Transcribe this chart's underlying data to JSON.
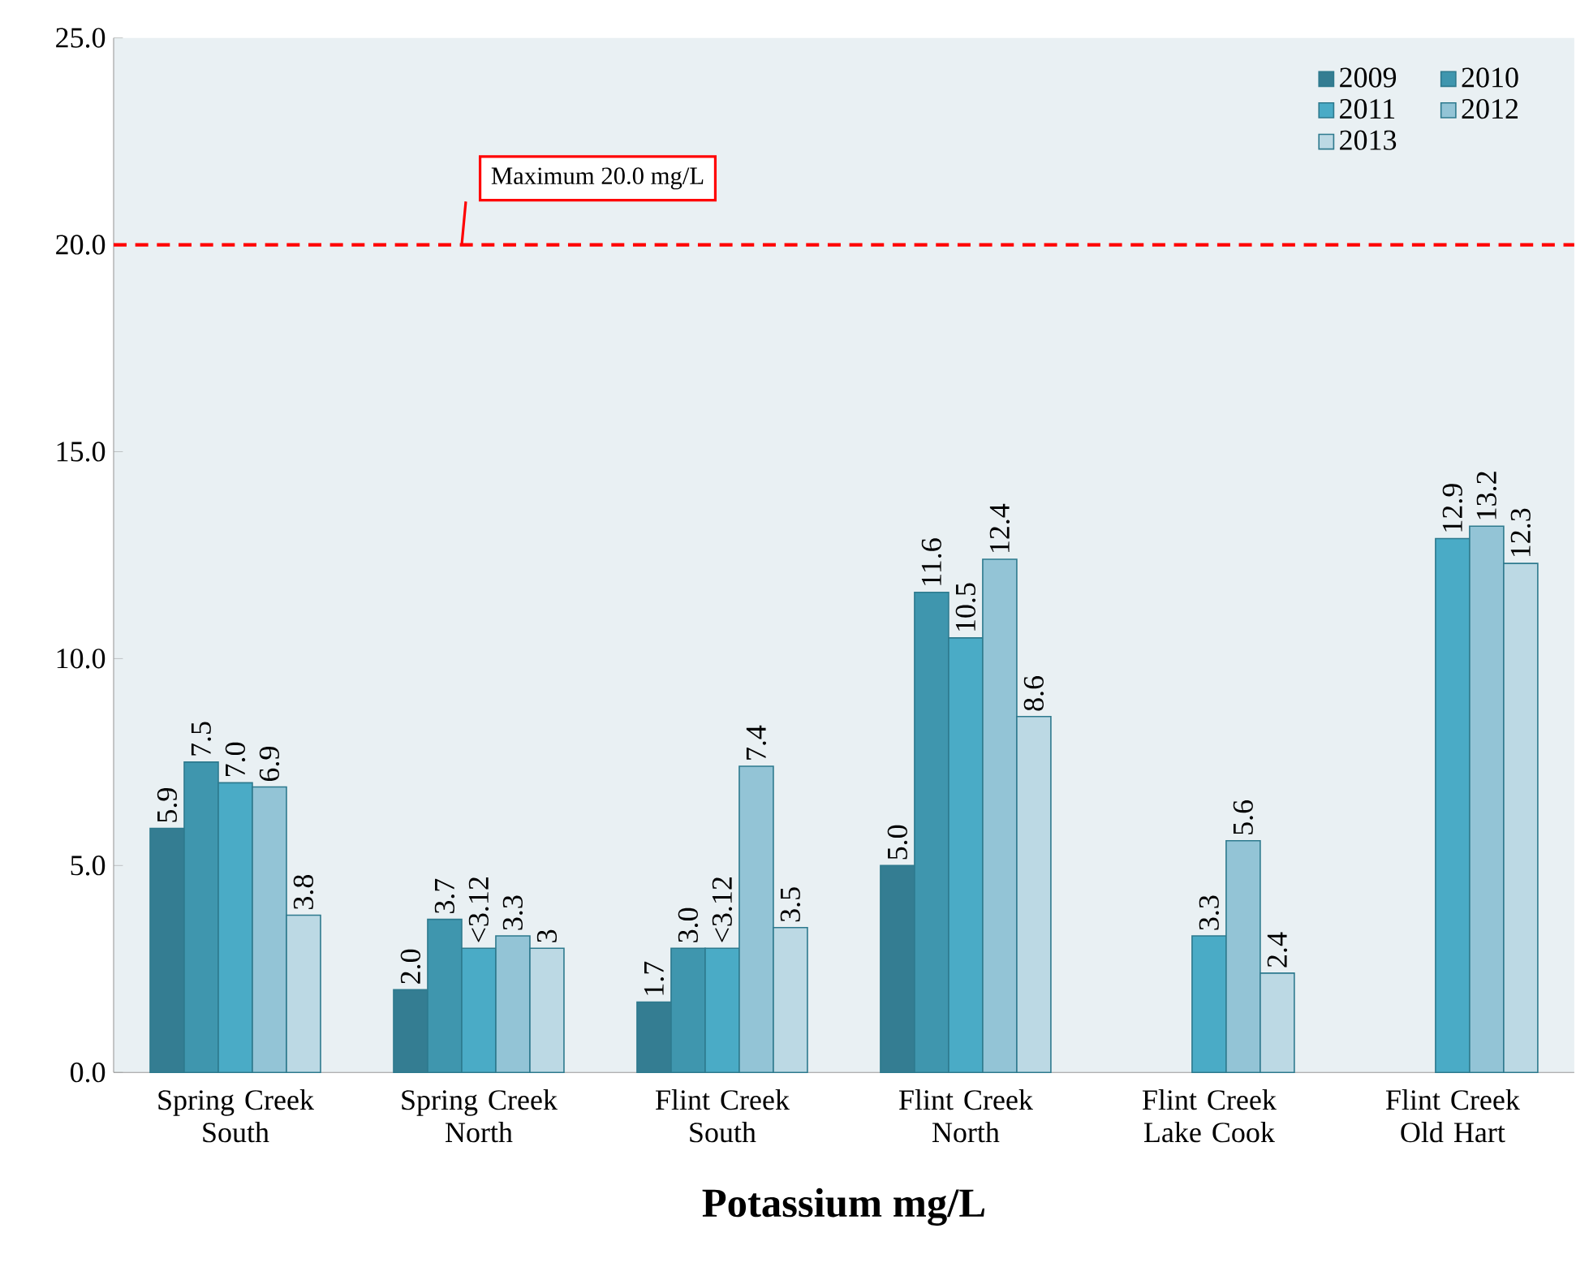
{
  "chart_data": {
    "type": "bar",
    "xlabel": "Potassium mg/L",
    "categories": [
      "Spring Creek South",
      "Spring Creek North",
      "Flint Creek South",
      "Flint Creek North",
      "Flint Creek Lake Cook",
      "Flint Creek Old Hart"
    ],
    "series": [
      {
        "name": "2009",
        "color": "#347d92",
        "values": [
          5.9,
          2.0,
          1.7,
          5.0,
          null,
          null
        ],
        "value_labels": [
          "5.9",
          "2.0",
          "1.7",
          "5.0",
          null,
          null
        ]
      },
      {
        "name": "2010",
        "color": "#3f96ae",
        "values": [
          7.5,
          3.7,
          3.0,
          11.6,
          null,
          null
        ],
        "value_labels": [
          "7.5",
          "3.7",
          "3.0",
          "11.6",
          null,
          null
        ]
      },
      {
        "name": "2011",
        "color": "#4aabc6",
        "values": [
          7.0,
          3.0,
          3.0,
          10.5,
          3.3,
          12.9
        ],
        "value_labels": [
          "7.0",
          "<3.12",
          "<3.12",
          "10.5",
          "3.3",
          "12.9"
        ]
      },
      {
        "name": "2012",
        "color": "#93c4d6",
        "values": [
          6.9,
          3.3,
          7.4,
          12.4,
          5.6,
          13.2
        ],
        "value_labels": [
          "6.9",
          "3.3",
          "7.4",
          "12.4",
          "5.6",
          "13.2"
        ]
      },
      {
        "name": "2013",
        "color": "#bcd9e4",
        "values": [
          3.8,
          3.0,
          3.5,
          8.6,
          2.4,
          12.3
        ],
        "value_labels": [
          "3.8",
          "3",
          "3.5",
          "8.6",
          "2.4",
          "12.3"
        ]
      }
    ],
    "ylim": [
      0,
      25
    ],
    "yticks": [
      {
        "value": 0,
        "label": "0.0"
      },
      {
        "value": 5,
        "label": "5.0"
      },
      {
        "value": 10,
        "label": "10.0"
      },
      {
        "value": 15,
        "label": "15.0"
      },
      {
        "value": 20,
        "label": "20.0"
      },
      {
        "value": 25,
        "label": "25.0"
      }
    ],
    "ref_lines": [
      {
        "axis": "y",
        "value": 20,
        "label": "Maximum  20.0 mg/L",
        "color": "#ff0000",
        "line_style": "dashed"
      }
    ],
    "legend": "top right",
    "grid": false
  }
}
